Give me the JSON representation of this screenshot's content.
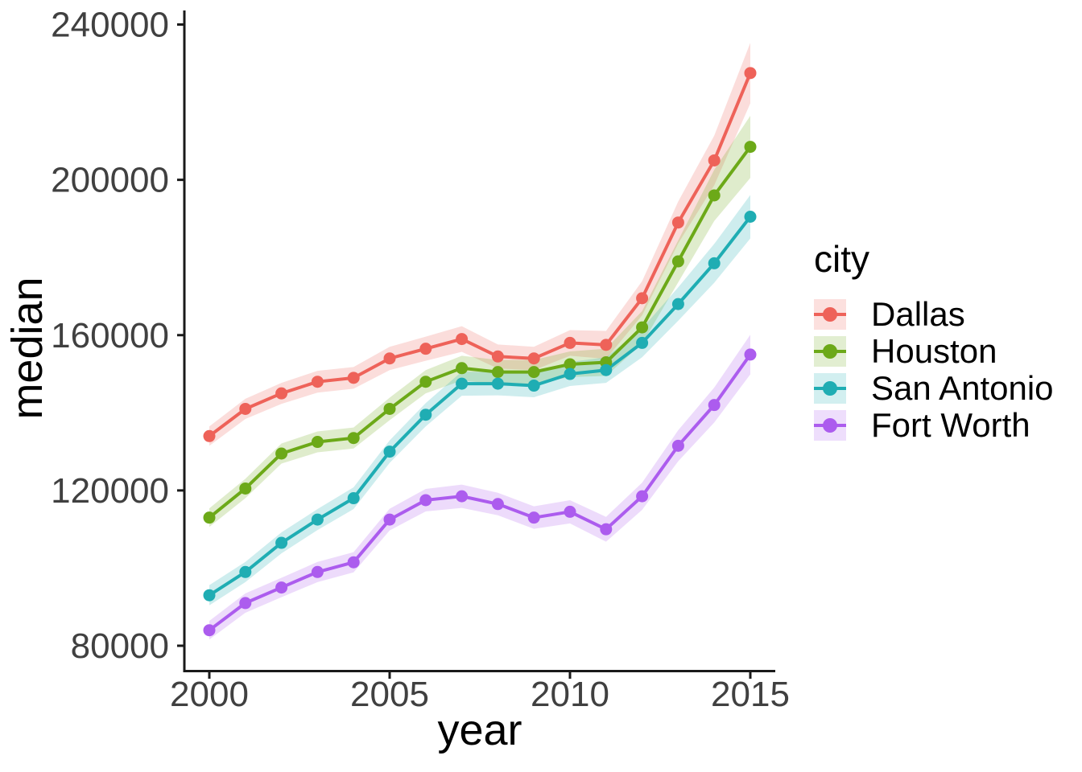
{
  "chart_data": {
    "type": "line",
    "title": "",
    "xlabel": "year",
    "ylabel": "median",
    "legend_title": "city",
    "legend_position": "right",
    "grid": false,
    "x": [
      2000,
      2001,
      2002,
      2003,
      2004,
      2005,
      2006,
      2007,
      2008,
      2009,
      2010,
      2011,
      2012,
      2013,
      2014,
      2015
    ],
    "x_ticks": [
      2000,
      2005,
      2010,
      2015
    ],
    "y_ticks": [
      80000,
      120000,
      160000,
      200000,
      240000
    ],
    "xlim": [
      1999.3,
      2015.7
    ],
    "ylim": [
      73400,
      243500
    ],
    "axis_color": "#1A1A1A",
    "tick_label_color": "#404040",
    "ribbon_opacity": 0.22,
    "series": [
      {
        "name": "Dallas",
        "color": "#EE6259",
        "values": [
          134000,
          141000,
          145000,
          148000,
          149000,
          154000,
          156500,
          159000,
          154500,
          154000,
          158000,
          157500,
          169500,
          189000,
          205000,
          227500
        ],
        "band": [
          2500,
          2600,
          2700,
          2800,
          2800,
          3000,
          3100,
          3300,
          3100,
          3000,
          3300,
          3600,
          4400,
          5400,
          6400,
          7800
        ]
      },
      {
        "name": "Houston",
        "color": "#6CA918",
        "values": [
          113000,
          120500,
          129500,
          132500,
          133500,
          141000,
          148000,
          151500,
          150500,
          150500,
          152500,
          153000,
          162000,
          179000,
          196000,
          208500
        ],
        "band": [
          2400,
          2500,
          2600,
          2700,
          2700,
          2900,
          3000,
          3200,
          3100,
          3100,
          3300,
          3500,
          4200,
          5400,
          6600,
          8000
        ]
      },
      {
        "name": "San Antonio",
        "color": "#1FADB3",
        "values": [
          93000,
          99000,
          106500,
          112500,
          118000,
          130000,
          139500,
          147500,
          147500,
          147000,
          150000,
          151000,
          158000,
          168000,
          178500,
          190500
        ],
        "band": [
          2600,
          2600,
          2700,
          2700,
          2800,
          2900,
          3000,
          3100,
          3000,
          3000,
          3100,
          3300,
          3700,
          4300,
          5000,
          5600
        ]
      },
      {
        "name": "Fort Worth",
        "color": "#AC5CEE",
        "values": [
          84000,
          91000,
          95000,
          99000,
          101500,
          112500,
          117500,
          118500,
          116500,
          113000,
          114500,
          110000,
          118500,
          131500,
          142000,
          155000
        ],
        "band": [
          2400,
          2500,
          2500,
          2600,
          2600,
          2800,
          2900,
          3000,
          2900,
          2900,
          3000,
          3200,
          3500,
          4000,
          4500,
          5100
        ]
      }
    ]
  }
}
